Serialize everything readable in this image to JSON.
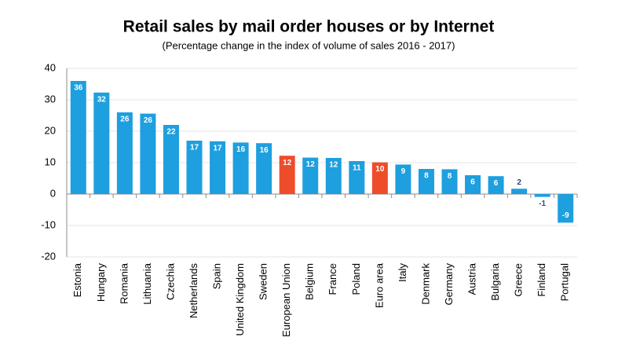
{
  "chart_data": {
    "type": "bar",
    "title": "Retail sales by mail order houses or by Internet",
    "subtitle": "(Percentage change in the index of volume of sales 2016 - 2017)",
    "categories": [
      "Estonia",
      "Hungary",
      "Romania",
      "Lithuania",
      "Czechia",
      "Netherlands",
      "Spain",
      "United Kingdom",
      "Sweden",
      "European Union",
      "Belgium",
      "France",
      "Poland",
      "Euro area",
      "Italy",
      "Denmark",
      "Germany",
      "Austria",
      "Bulgaria",
      "Greece",
      "Finland",
      "Portugal"
    ],
    "values": [
      36,
      32.3,
      26,
      25.6,
      22,
      17,
      16.8,
      16.4,
      16.2,
      12.2,
      11.6,
      11.5,
      10.5,
      10.1,
      9.4,
      8,
      7.9,
      6,
      5.7,
      1.7,
      -0.9,
      -9.1
    ],
    "value_labels": [
      "36",
      "32",
      "26",
      "26",
      "22",
      "17",
      "17",
      "16",
      "16",
      "12",
      "12",
      "12",
      "11",
      "10",
      "9",
      "8",
      "8",
      "6",
      "6",
      "2",
      "-1",
      "-9"
    ],
    "colors": [
      "#1e9fdf",
      "#1e9fdf",
      "#1e9fdf",
      "#1e9fdf",
      "#1e9fdf",
      "#1e9fdf",
      "#1e9fdf",
      "#1e9fdf",
      "#1e9fdf",
      "#ee4d2b",
      "#1e9fdf",
      "#1e9fdf",
      "#1e9fdf",
      "#ee4d2b",
      "#1e9fdf",
      "#1e9fdf",
      "#1e9fdf",
      "#1e9fdf",
      "#1e9fdf",
      "#1e9fdf",
      "#1e9fdf",
      "#1e9fdf"
    ],
    "ylim": [
      -20,
      40
    ],
    "yticks": [
      -20,
      -10,
      0,
      10,
      20,
      30,
      40
    ],
    "grid": true
  }
}
